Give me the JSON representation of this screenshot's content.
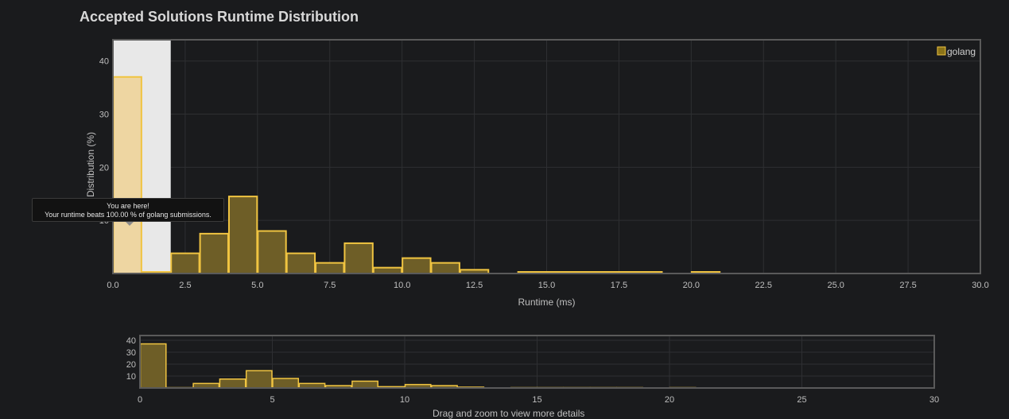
{
  "title": "Accepted Solutions Runtime Distribution",
  "tooltip": {
    "line1": "You are here!",
    "line2": "Your runtime beats 100.00 % of golang submissions."
  },
  "navigator_caption": "Drag and zoom to view more details",
  "colors": {
    "bar_fill": "#6e5e27",
    "bar_stroke": "#f0c441",
    "highlight_fill": "#eed6a2",
    "selection_band": "#e8e8e8",
    "legend_swatch": "#8b7318",
    "background": "#1a1b1d",
    "grid": "#2e2f32",
    "frame": "#5a5a5a"
  },
  "chart_data": [
    {
      "type": "bar",
      "role": "main",
      "series": [
        {
          "name": "golang",
          "bins": [
            {
              "x0": 0,
              "x1": 1,
              "value": 37
            },
            {
              "x0": 1,
              "x1": 2,
              "value": 0.3
            },
            {
              "x0": 2,
              "x1": 3,
              "value": 3.8
            },
            {
              "x0": 3,
              "x1": 4,
              "value": 7.5
            },
            {
              "x0": 4,
              "x1": 5,
              "value": 14.5
            },
            {
              "x0": 5,
              "x1": 6,
              "value": 8
            },
            {
              "x0": 6,
              "x1": 7,
              "value": 3.8
            },
            {
              "x0": 7,
              "x1": 8,
              "value": 2
            },
            {
              "x0": 8,
              "x1": 9,
              "value": 5.7
            },
            {
              "x0": 9,
              "x1": 10,
              "value": 1.1
            },
            {
              "x0": 10,
              "x1": 11,
              "value": 2.9
            },
            {
              "x0": 11,
              "x1": 12,
              "value": 2
            },
            {
              "x0": 12,
              "x1": 13,
              "value": 0.7
            },
            {
              "x0": 14,
              "x1": 15,
              "value": 0.3
            },
            {
              "x0": 15,
              "x1": 16,
              "value": 0.3
            },
            {
              "x0": 16,
              "x1": 17,
              "value": 0.3
            },
            {
              "x0": 17,
              "x1": 18,
              "value": 0.3
            },
            {
              "x0": 18,
              "x1": 19,
              "value": 0.3
            },
            {
              "x0": 20,
              "x1": 21,
              "value": 0.3
            }
          ]
        }
      ],
      "highlight_bin": 0,
      "selection_range": [
        0,
        2
      ],
      "xlabel": "Runtime (ms)",
      "ylabel": "Distribution (%)",
      "xlim": [
        0,
        30
      ],
      "ylim": [
        0,
        44
      ],
      "xticks": [
        "0.0",
        "2.5",
        "5.0",
        "7.5",
        "10.0",
        "12.5",
        "15.0",
        "17.5",
        "20.0",
        "22.5",
        "25.0",
        "27.5",
        "30.0"
      ],
      "yticks": [
        "10",
        "20",
        "30",
        "40"
      ],
      "legend": {
        "label": "golang",
        "position": "top-right"
      },
      "grid": true
    },
    {
      "type": "bar",
      "role": "navigator",
      "xlim": [
        0,
        30
      ],
      "ylim": [
        0,
        44
      ],
      "xticks": [
        "0",
        "5",
        "10",
        "15",
        "20",
        "25",
        "30"
      ],
      "yticks": [
        "10",
        "20",
        "30",
        "40"
      ],
      "grid": true
    }
  ]
}
